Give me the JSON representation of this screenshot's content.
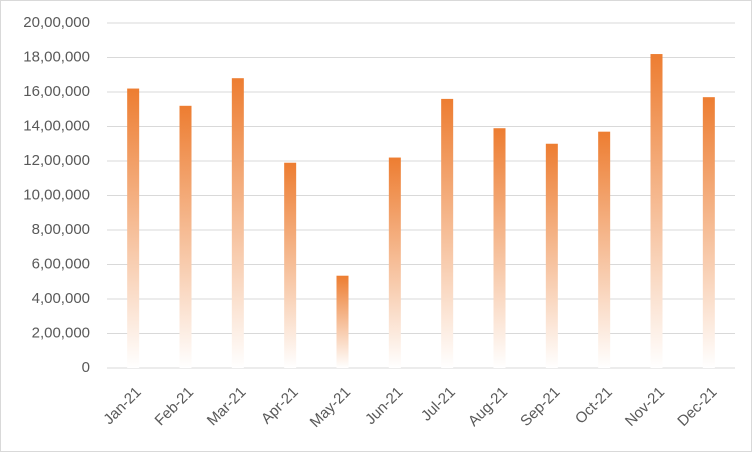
{
  "chart_data": {
    "type": "bar",
    "categories": [
      "Jan-21",
      "Feb-21",
      "Mar-21",
      "Apr-21",
      "May-21",
      "Jun-21",
      "Jul-21",
      "Aug-21",
      "Sep-21",
      "Oct-21",
      "Nov-21",
      "Dec-21"
    ],
    "values": [
      1620000,
      1520000,
      1680000,
      1190000,
      535000,
      1220000,
      1560000,
      1390000,
      1300000,
      1370000,
      1820000,
      1570000
    ],
    "color": "#ed7d31",
    "ylim": [
      0,
      2000000
    ],
    "yticks": [
      0,
      {
        "value": 200000,
        "label": "2,00,000"
      },
      {
        "value": 400000,
        "label": "4,00,000"
      },
      {
        "value": 600000,
        "label": "6,00,000"
      },
      {
        "value": 800000,
        "label": "8,00,000"
      },
      {
        "value": 1000000,
        "label": "10,00,000"
      },
      {
        "value": 1200000,
        "label": "12,00,000"
      },
      {
        "value": 1400000,
        "label": "14,00,000"
      },
      {
        "value": 1600000,
        "label": "16,00,000"
      },
      {
        "value": 1800000,
        "label": "18,00,000"
      },
      {
        "value": 2000000,
        "label": "20,00,000"
      }
    ],
    "grid": true
  }
}
